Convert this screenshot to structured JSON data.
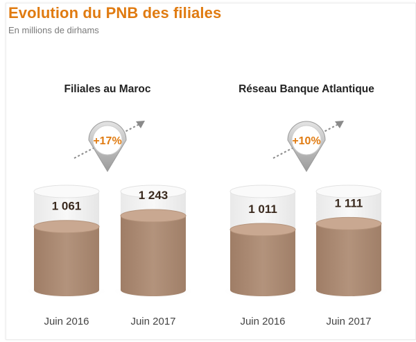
{
  "header": {
    "title": "Evolution du PNB des filiales",
    "subtitle": "En millions de dirhams"
  },
  "colors": {
    "accent": "#e07b11",
    "fill": "#ad8c74",
    "fill_top": "#c9a891",
    "glass": "#f1f1f1",
    "value_text": "#3a2a1e",
    "label_text": "#444444"
  },
  "chart_data": [
    {
      "type": "bar",
      "title": "Filiales au Maroc",
      "categories": [
        "Juin 2016",
        "Juin 2017"
      ],
      "values": [
        1061,
        1243
      ],
      "value_labels": [
        "1 061",
        "1 243"
      ],
      "growth_label": "+17%",
      "ylim": [
        0,
        1650
      ]
    },
    {
      "type": "bar",
      "title": "Réseau Banque Atlantique",
      "categories": [
        "Juin 2016",
        "Juin 2017"
      ],
      "values": [
        1011,
        1111
      ],
      "value_labels": [
        "1 011",
        "1 111"
      ],
      "growth_label": "+10%",
      "ylim": [
        0,
        1650
      ]
    }
  ]
}
